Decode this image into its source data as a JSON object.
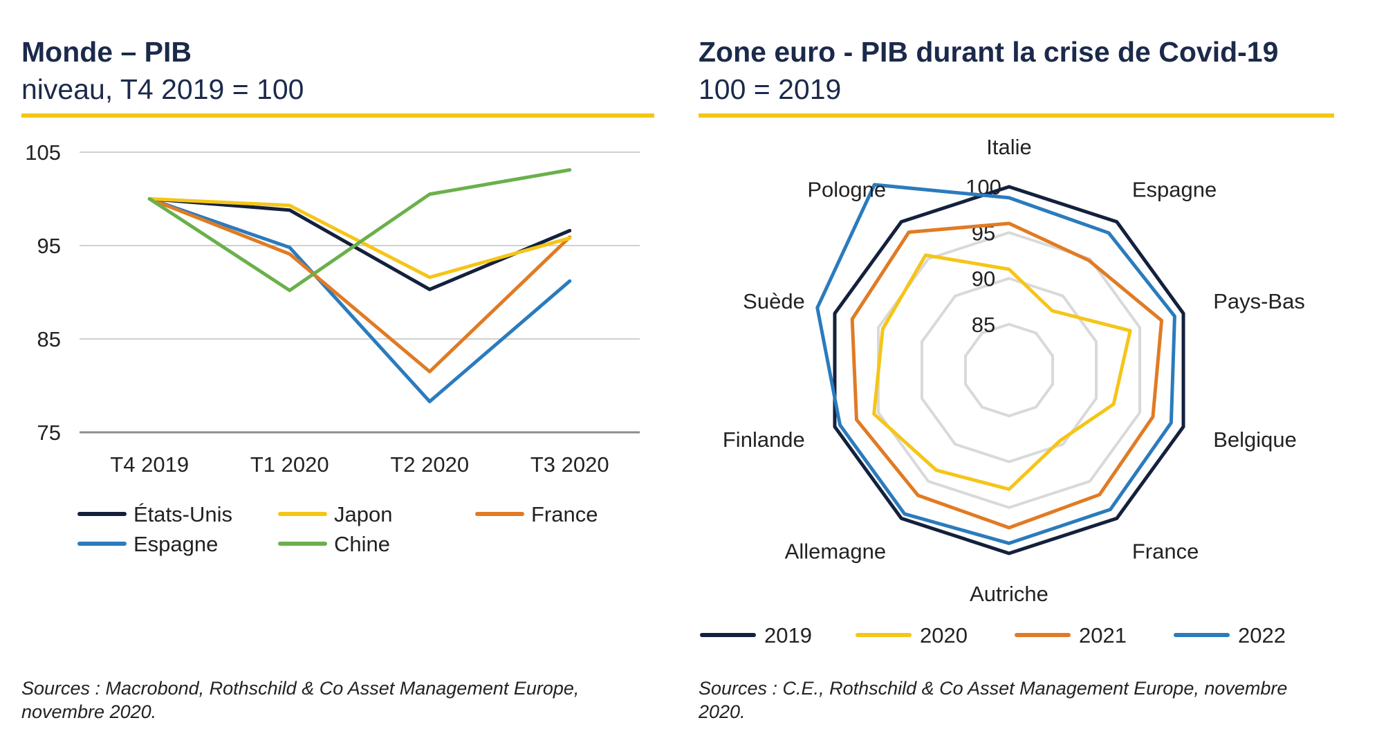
{
  "left": {
    "title": "Monde – PIB",
    "subtitle": "niveau, T4 2019 = 100",
    "source": "Sources : Macrobond, Rothschild & Co Asset Management Europe, novembre 2020."
  },
  "right": {
    "title": "Zone euro - PIB durant la crise de Covid-19",
    "subtitle": "100 = 2019",
    "source": "Sources : C.E., Rothschild & Co Asset Management Europe, novembre 2020."
  },
  "chart_data": [
    {
      "type": "line",
      "title": "Monde – PIB",
      "subtitle": "niveau, T4 2019 = 100",
      "categories": [
        "T4 2019",
        "T1 2020",
        "T2 2020",
        "T3 2020"
      ],
      "ylim": [
        75,
        105
      ],
      "yticks": [
        75,
        85,
        95,
        105
      ],
      "grid": true,
      "legend_position": "bottom",
      "series": [
        {
          "name": "États-Unis",
          "color": "#14213d",
          "values": [
            100,
            98.8,
            90.3,
            96.6
          ]
        },
        {
          "name": "Japon",
          "color": "#f5c518",
          "values": [
            100,
            99.3,
            91.6,
            95.8
          ]
        },
        {
          "name": "France",
          "color": "#e07b24",
          "values": [
            100,
            94.1,
            81.5,
            95.9
          ]
        },
        {
          "name": "Espagne",
          "color": "#2b7bbd",
          "values": [
            100,
            94.8,
            78.3,
            91.2
          ]
        },
        {
          "name": "Chine",
          "color": "#6ab04c",
          "values": [
            100,
            90.2,
            100.5,
            103.1
          ]
        }
      ]
    },
    {
      "type": "radar",
      "title": "Zone euro - PIB durant la crise de Covid-19",
      "subtitle": "100 = 2019",
      "categories": [
        "Italie",
        "Espagne",
        "Pays-Bas",
        "Belgique",
        "France",
        "Autriche",
        "Allemagne",
        "Finlande",
        "Suède",
        "Pologne"
      ],
      "rlim": [
        80,
        100
      ],
      "rticks": [
        85,
        90,
        95,
        100
      ],
      "legend_position": "bottom",
      "series": [
        {
          "name": "2019",
          "color": "#14213d",
          "values": [
            100,
            100,
            100,
            100,
            100,
            100,
            100,
            100,
            100,
            100
          ]
        },
        {
          "name": "2020",
          "color": "#f5c518",
          "values": [
            91,
            88,
            93.9,
            92,
            89.5,
            93,
            93.5,
            95.5,
            94.5,
            95.5
          ]
        },
        {
          "name": "2021",
          "color": "#e07b24",
          "values": [
            96,
            94.8,
            97.5,
            96.5,
            96.8,
            97.2,
            96.9,
            97.5,
            98,
            98.6
          ]
        },
        {
          "name": "2022",
          "color": "#2b7bbd",
          "values": [
            98.8,
            98.5,
            99,
            98.6,
            98.8,
            98.9,
            99.4,
            99.4,
            102,
            105
          ]
        }
      ]
    }
  ]
}
